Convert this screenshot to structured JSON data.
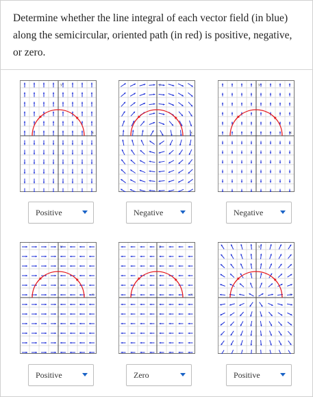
{
  "prompt": "Determine whether the line integral of each vector field (in blue) along the semicircular, oriented path (in red) is positive, negative, or zero.",
  "colors": {
    "field": "#1c2fd8",
    "path": "#e4171d",
    "grid": "#d2d2d2",
    "axis": "#444444",
    "dropdown_caret": "#1a63c7"
  },
  "problems": [
    {
      "answer": "Positive"
    },
    {
      "answer": "Negative"
    },
    {
      "answer": "Negative"
    },
    {
      "answer": "Positive"
    },
    {
      "answer": "Zero"
    },
    {
      "answer": "Positive"
    }
  ],
  "plot_labels": {
    "y_axis": "y",
    "x_axis": "x"
  },
  "icons": {
    "dropdown": "chevron-down-icon",
    "path_direction": "arrow-icon"
  }
}
